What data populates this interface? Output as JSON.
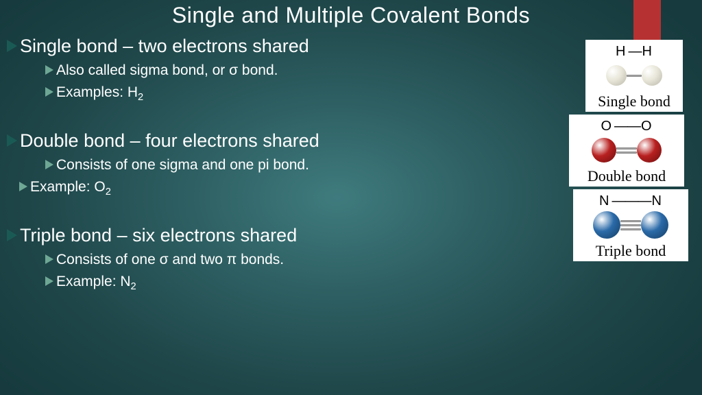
{
  "title": "Single and Multiple Covalent Bonds",
  "accent_color": "#b63232",
  "arrow_lvl1_color": "#1a5a55",
  "arrow_lvl2_color": "#6ea895",
  "sections": [
    {
      "heading": "Single bond – two electrons shared",
      "subs": [
        {
          "text": "Also called sigma bond, or σ bond.",
          "indent": "lvl2"
        },
        {
          "text_html": "Examples: H<sub>2</sub>",
          "indent": "lvl2"
        }
      ]
    },
    {
      "heading": "Double bond – four electrons shared",
      "subs": [
        {
          "text": "Consists of one sigma and one pi bond.",
          "indent": "lvl2"
        },
        {
          "text_html": "Example: O<sub>2</sub>",
          "indent": "lvl2b"
        }
      ]
    },
    {
      "heading": "Triple bond – six electrons shared",
      "subs": [
        {
          "text": "Consists of one σ and two π bonds.",
          "indent": "lvl2"
        },
        {
          "text_html": "Example: N<sub>2</sub>",
          "indent": "lvl2"
        }
      ]
    }
  ],
  "diagrams": [
    {
      "formula_left": "H",
      "formula_right": "H",
      "bond_lines": 1,
      "label": "Single bond",
      "atom_color": "#e8e6d8",
      "atom_shadow": "#b8b6a8",
      "atom_diameter": 30,
      "stick_width": 22,
      "card_class": "c1"
    },
    {
      "formula_left": "O",
      "formula_right": "O",
      "bond_lines": 2,
      "label": "Double bond",
      "atom_color": "#b82020",
      "atom_shadow": "#6d0f0f",
      "atom_diameter": 36,
      "stick_width": 30,
      "card_class": "c2"
    },
    {
      "formula_left": "N",
      "formula_right": "N",
      "bond_lines": 3,
      "label": "Triple bond",
      "atom_color": "#2a6aa8",
      "atom_shadow": "#153d63",
      "atom_diameter": 40,
      "stick_width": 30,
      "card_class": "c3"
    }
  ]
}
